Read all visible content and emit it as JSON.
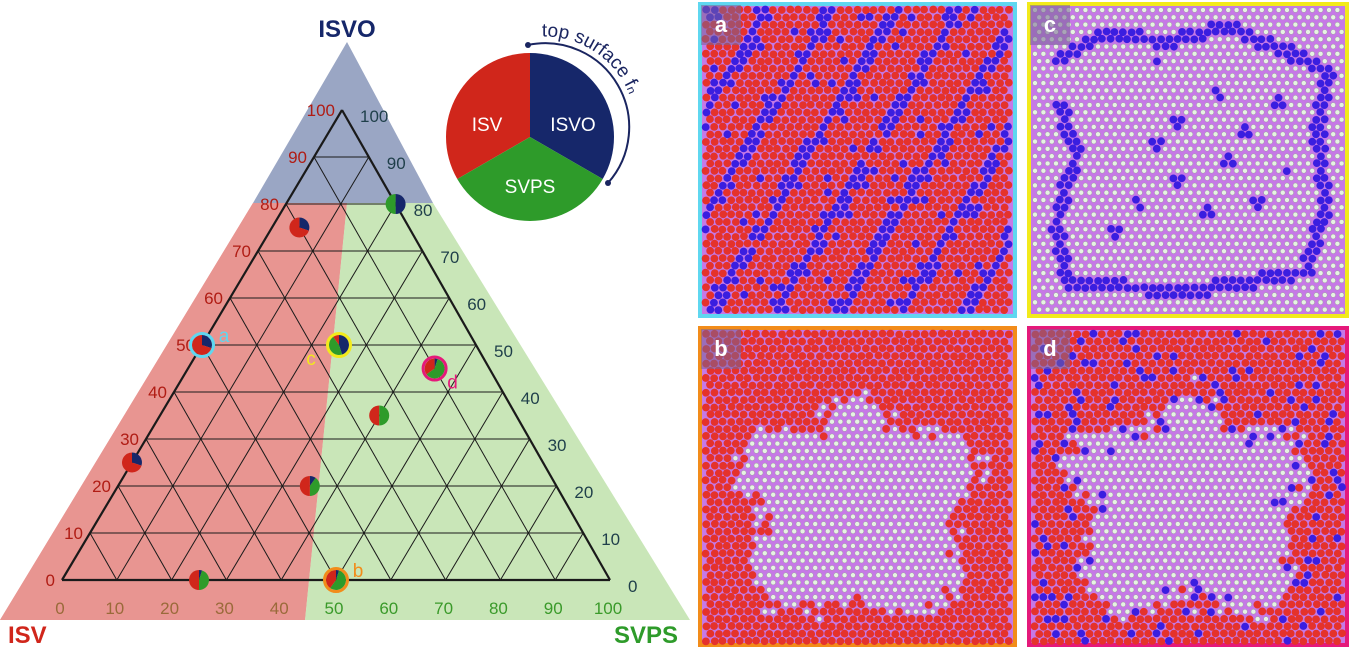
{
  "ternary": {
    "corner_labels": {
      "top": "ISVO",
      "left": "ISV",
      "right": "SVPS"
    },
    "isvo_ticks": [
      "0",
      "10",
      "20",
      "30",
      "40",
      "50",
      "60",
      "70",
      "80",
      "90",
      "100"
    ],
    "isv_ticks": [
      "100",
      "90",
      "80",
      "70",
      "60",
      "50",
      "40",
      "30",
      "20",
      "10",
      "0"
    ],
    "svps_ticks": [
      "0",
      "10",
      "20",
      "30",
      "40",
      "50",
      "60",
      "70",
      "80",
      "90",
      "100"
    ]
  },
  "legend": {
    "slices": [
      {
        "label": "ISV",
        "color": "#d0261b"
      },
      {
        "label": "ISVO",
        "color": "#16276a"
      },
      {
        "label": "SVPS",
        "color": "#2e9b2a"
      }
    ],
    "arc_label": "top surface fₙ"
  },
  "regions": {
    "isvo_color": "#9aa6c4",
    "isv_color": "#e89591",
    "svps_color": "#c9e6b8"
  },
  "points": [
    {
      "svps": 45,
      "isvo": 45,
      "marker": "d",
      "ring": "#e5197a",
      "composition": {
        "isv": 35,
        "isvo": 5,
        "svps": 60
      }
    },
    {
      "svps": 50,
      "isvo": 0,
      "marker": "b",
      "ring": "#f28c1a",
      "composition": {
        "isv": 40,
        "isvo": 5,
        "svps": 55
      }
    },
    {
      "svps": 0,
      "isvo": 50,
      "marker": "a",
      "ring": "#5fd7f0",
      "composition": {
        "isv": 70,
        "isvo": 30,
        "svps": 0
      }
    },
    {
      "svps": 25,
      "isvo": 50,
      "marker": "c",
      "ring": "#f2ea1b",
      "composition": {
        "isv": 10,
        "isvo": 45,
        "svps": 45
      }
    },
    {
      "svps": 5,
      "isvo": 75,
      "marker": "",
      "ring": "",
      "composition": {
        "isv": 70,
        "isvo": 30,
        "svps": 0
      }
    },
    {
      "svps": 20,
      "isvo": 80,
      "marker": "",
      "ring": "",
      "composition": {
        "isv": 0,
        "isvo": 50,
        "svps": 50
      }
    },
    {
      "svps": 40,
      "isvo": 35,
      "marker": "",
      "ring": "",
      "composition": {
        "isv": 50,
        "isvo": 0,
        "svps": 50
      }
    },
    {
      "svps": 0,
      "isvo": 25,
      "marker": "",
      "ring": "",
      "composition": {
        "isv": 70,
        "isvo": 30,
        "svps": 0
      }
    },
    {
      "svps": 35,
      "isvo": 20,
      "marker": "",
      "ring": "",
      "composition": {
        "isv": 50,
        "isvo": 10,
        "svps": 40
      }
    },
    {
      "svps": 25,
      "isvo": 0,
      "marker": "",
      "ring": "",
      "composition": {
        "isv": 50,
        "isvo": 5,
        "svps": 45
      }
    }
  ],
  "panels": [
    {
      "letter": "a",
      "border": "#5fd7f0",
      "mode": "a"
    },
    {
      "letter": "c",
      "border": "#f2ea1b",
      "mode": "c"
    },
    {
      "letter": "b",
      "border": "#f28c1a",
      "mode": "b"
    },
    {
      "letter": "d",
      "border": "#e5197a",
      "mode": "d"
    }
  ]
}
